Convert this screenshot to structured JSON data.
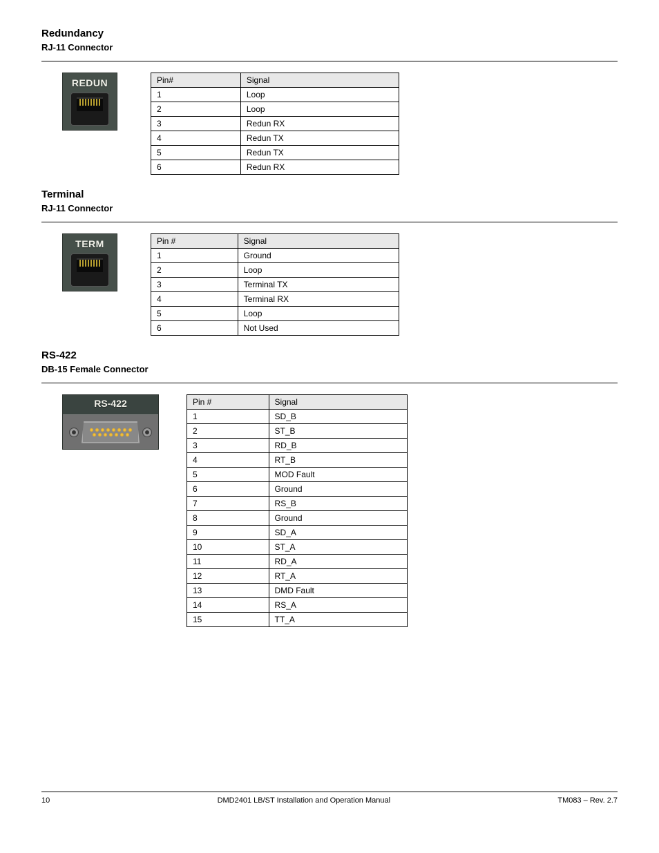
{
  "sections": {
    "redundancy": {
      "title": "Redundancy",
      "subtitle": "RJ-11 Connector",
      "connector_label": "REDUN",
      "table_header_left": "Pin#",
      "table_header_right": "Signal",
      "rows": [
        {
          "pin": "1",
          "signal": "Loop"
        },
        {
          "pin": "2",
          "signal": "Loop"
        },
        {
          "pin": "3",
          "signal": "Redun RX"
        },
        {
          "pin": "4",
          "signal": "Redun TX"
        },
        {
          "pin": "5",
          "signal": "Redun TX"
        },
        {
          "pin": "6",
          "signal": "Redun RX"
        }
      ]
    },
    "terminal": {
      "title": "Terminal",
      "subtitle": "RJ-11 Connector",
      "connector_label": "TERM",
      "table_header_left": "Pin #",
      "table_header_right": "Signal",
      "rows": [
        {
          "pin": "1",
          "signal": "Ground"
        },
        {
          "pin": "2",
          "signal": "Loop"
        },
        {
          "pin": "3",
          "signal": "Terminal TX"
        },
        {
          "pin": "4",
          "signal": "Terminal RX"
        },
        {
          "pin": "5",
          "signal": "Loop"
        },
        {
          "pin": "6",
          "signal": "Not Used"
        }
      ]
    },
    "rs422": {
      "title": "RS-422",
      "subtitle": "DB-15 Female Connector",
      "connector_label": "RS-422",
      "table_header_left": "Pin #",
      "table_header_right": "Signal",
      "rows": [
        {
          "pin": "1",
          "signal": "SD_B"
        },
        {
          "pin": "2",
          "signal": "ST_B"
        },
        {
          "pin": "3",
          "signal": "RD_B"
        },
        {
          "pin": "4",
          "signal": "RT_B"
        },
        {
          "pin": "5",
          "signal": "MOD Fault"
        },
        {
          "pin": "6",
          "signal": "Ground"
        },
        {
          "pin": "7",
          "signal": "RS_B"
        },
        {
          "pin": "8",
          "signal": "Ground"
        },
        {
          "pin": "9",
          "signal": "SD_A"
        },
        {
          "pin": "10",
          "signal": "ST_A"
        },
        {
          "pin": "11",
          "signal": "RD_A"
        },
        {
          "pin": "12",
          "signal": "RT_A"
        },
        {
          "pin": "13",
          "signal": "DMD Fault"
        },
        {
          "pin": "14",
          "signal": "RS_A"
        },
        {
          "pin": "15",
          "signal": "TT_A"
        }
      ]
    }
  },
  "footer": {
    "page": "10",
    "doc_title": "DMD2401 LB/ST Installation and Operation Manual",
    "rev": "TM083 – Rev. 2.7"
  },
  "colors": {
    "header_bg": "#e8e8e8",
    "connector_bg": "#46504a",
    "label_text": "#f0f0e8"
  }
}
